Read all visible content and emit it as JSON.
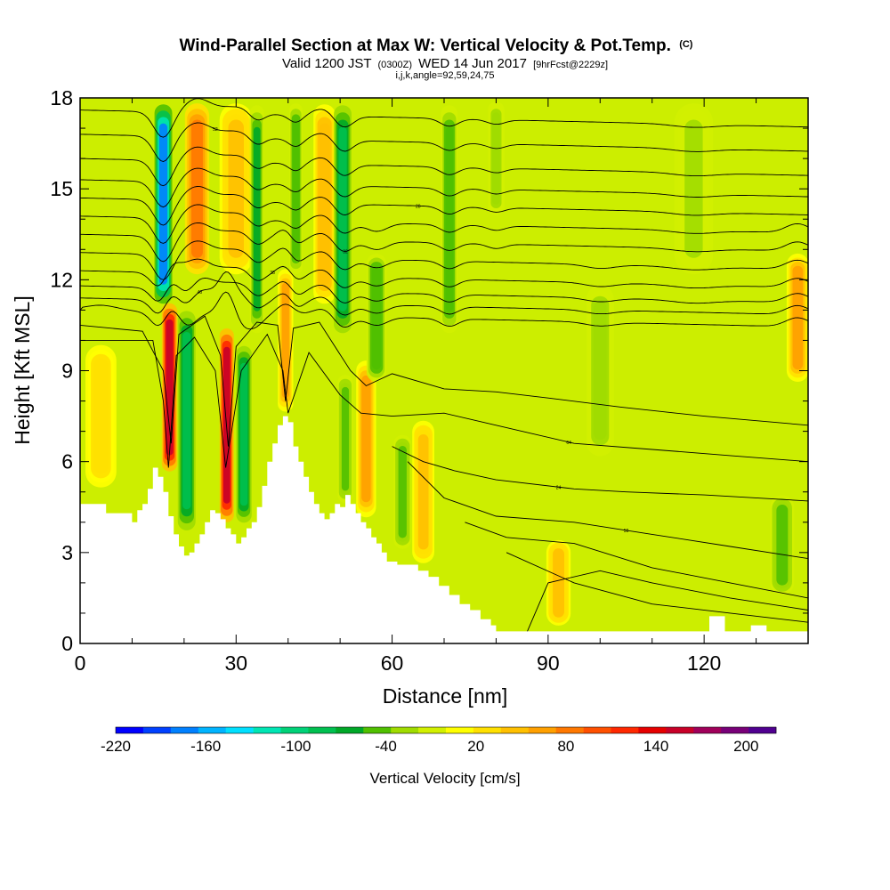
{
  "chart_data": {
    "type": "heatmap",
    "title": "Wind-Parallel Section at Max W: Vertical Velocity & Pot.Temp.",
    "title_suffix": "(C)",
    "subtitle": {
      "valid": "Valid 1200 JST",
      "utc": "(0300Z)",
      "date": "WED 14 Jun 2017",
      "fcst": "[9hrFcst@2229z]",
      "indices": "i,j,k,angle=92,59,24,75"
    },
    "xlabel": "Distance [nm]",
    "ylabel": "Height [Kft MSL]",
    "xlim": [
      0,
      140
    ],
    "ylim": [
      0,
      18
    ],
    "x_ticks": [
      0,
      30,
      60,
      90,
      120
    ],
    "y_ticks": [
      0,
      3,
      6,
      9,
      12,
      15,
      18
    ],
    "colorbar": {
      "label": "Vertical Velocity [cm/s]",
      "tick_values": [
        -220,
        -160,
        -100,
        -40,
        20,
        80,
        140,
        200
      ],
      "tick_labels": [
        "-220",
        "-160",
        "-100",
        "-40",
        "20",
        "80",
        "140",
        "200"
      ],
      "range": [
        -220,
        220
      ],
      "colors": [
        "#0000ff",
        "#0040ff",
        "#0080ff",
        "#00b4ff",
        "#00e0ff",
        "#00e6b4",
        "#00d278",
        "#00c050",
        "#00a828",
        "#50c000",
        "#a0dc00",
        "#d2f000",
        "#ffff00",
        "#ffe000",
        "#ffc000",
        "#ffa000",
        "#ff7800",
        "#ff5000",
        "#ff2800",
        "#e60000",
        "#c80028",
        "#a0005a",
        "#780078",
        "#500090"
      ]
    },
    "terrain": [
      [
        0,
        4.6
      ],
      [
        4,
        4.6
      ],
      [
        5,
        4.3
      ],
      [
        9,
        4.3
      ],
      [
        10,
        4.0
      ],
      [
        11,
        4.4
      ],
      [
        12,
        4.6
      ],
      [
        13,
        5.1
      ],
      [
        14,
        5.8
      ],
      [
        15,
        5.5
      ],
      [
        16,
        5.0
      ],
      [
        17,
        4.2
      ],
      [
        18,
        3.6
      ],
      [
        19,
        3.2
      ],
      [
        20,
        2.9
      ],
      [
        21,
        3.0
      ],
      [
        22,
        3.3
      ],
      [
        23,
        3.6
      ],
      [
        24,
        4.0
      ],
      [
        25,
        4.4
      ],
      [
        26,
        4.3
      ],
      [
        27,
        4.1
      ],
      [
        28,
        3.8
      ],
      [
        29,
        3.6
      ],
      [
        30,
        3.3
      ],
      [
        31,
        3.5
      ],
      [
        32,
        3.8
      ],
      [
        33,
        4.0
      ],
      [
        34,
        4.5
      ],
      [
        35,
        5.2
      ],
      [
        36,
        6.0
      ],
      [
        37,
        6.6
      ],
      [
        38,
        7.2
      ],
      [
        39,
        7.5
      ],
      [
        40,
        7.3
      ],
      [
        41,
        6.5
      ],
      [
        42,
        6.0
      ],
      [
        43,
        5.5
      ],
      [
        44,
        5.0
      ],
      [
        45,
        4.6
      ],
      [
        46,
        4.3
      ],
      [
        47,
        4.1
      ],
      [
        48,
        4.3
      ],
      [
        49,
        4.6
      ],
      [
        50,
        4.5
      ],
      [
        51,
        4.9
      ],
      [
        52,
        4.6
      ],
      [
        53,
        4.3
      ],
      [
        54,
        4.0
      ],
      [
        55,
        3.8
      ],
      [
        56,
        3.5
      ],
      [
        57,
        3.3
      ],
      [
        58,
        3.0
      ],
      [
        59,
        2.7
      ],
      [
        61,
        2.6
      ],
      [
        63,
        2.6
      ],
      [
        65,
        2.4
      ],
      [
        67,
        2.2
      ],
      [
        69,
        1.9
      ],
      [
        71,
        1.6
      ],
      [
        73,
        1.3
      ],
      [
        75,
        1.1
      ],
      [
        77,
        0.8
      ],
      [
        79,
        0.6
      ],
      [
        80,
        0.4
      ],
      [
        120,
        0.4
      ],
      [
        121,
        0.9
      ],
      [
        123,
        0.9
      ],
      [
        124,
        0.4
      ],
      [
        128,
        0.4
      ],
      [
        129,
        0.6
      ],
      [
        131,
        0.6
      ],
      [
        132,
        0.4
      ],
      [
        140,
        0.4
      ]
    ],
    "vertical_velocity_cells": [
      {
        "x": 16,
        "y0": 11.0,
        "y1": 18,
        "w": -170,
        "half": 1.6
      },
      {
        "x": 17.2,
        "y0": 5.5,
        "y1": 11.4,
        "w": 150,
        "half": 1.4
      },
      {
        "x": 20.5,
        "y0": 3.5,
        "y1": 11.2,
        "w": -90,
        "half": 1.6
      },
      {
        "x": 22.5,
        "y0": 12,
        "y1": 18,
        "w": 90,
        "half": 2.2
      },
      {
        "x": 28.2,
        "y0": 3.8,
        "y1": 10.6,
        "w": 150,
        "half": 1.3
      },
      {
        "x": 31.5,
        "y0": 3.8,
        "y1": 10.0,
        "w": -80,
        "half": 1.4
      },
      {
        "x": 30,
        "y0": 12,
        "y1": 18,
        "w": 45,
        "half": 3.0
      },
      {
        "x": 34,
        "y0": 10,
        "y1": 18,
        "w": -60,
        "half": 1.3
      },
      {
        "x": 39.5,
        "y0": 7.5,
        "y1": 12.5,
        "w": 70,
        "half": 1.4
      },
      {
        "x": 41.5,
        "y0": 12,
        "y1": 18,
        "w": -50,
        "half": 1.2
      },
      {
        "x": 47,
        "y0": 11,
        "y1": 18,
        "w": 50,
        "half": 2.0
      },
      {
        "x": 50.5,
        "y0": 10,
        "y1": 18,
        "w": -85,
        "half": 1.6
      },
      {
        "x": 51,
        "y0": 4.5,
        "y1": 9,
        "w": -40,
        "half": 1.4
      },
      {
        "x": 55,
        "y0": 4.0,
        "y1": 9.5,
        "w": 60,
        "half": 1.8
      },
      {
        "x": 57,
        "y0": 8.5,
        "y1": 13,
        "w": -55,
        "half": 1.8
      },
      {
        "x": 62,
        "y0": 3,
        "y1": 7,
        "w": -40,
        "half": 1.6
      },
      {
        "x": 66,
        "y0": 2.5,
        "y1": 7.5,
        "w": 45,
        "half": 2.0
      },
      {
        "x": 71,
        "y0": 10,
        "y1": 18,
        "w": -50,
        "half": 1.5
      },
      {
        "x": 80,
        "y0": 14,
        "y1": 18,
        "w": -30,
        "half": 1.5
      },
      {
        "x": 92,
        "y0": 0.5,
        "y1": 3.5,
        "w": 45,
        "half": 2.2
      },
      {
        "x": 100,
        "y0": 6,
        "y1": 12,
        "w": -25,
        "half": 2.5
      },
      {
        "x": 135,
        "y0": 1.5,
        "y1": 5,
        "w": -45,
        "half": 2.2
      },
      {
        "x": 138,
        "y0": 8.5,
        "y1": 13,
        "w": 60,
        "half": 2.0
      },
      {
        "x": 4,
        "y0": 5,
        "y1": 10,
        "w": 35,
        "half": 2.8
      },
      {
        "x": 118,
        "y0": 12,
        "y1": 18,
        "w": -20,
        "half": 3.5
      }
    ],
    "theta_contours": [
      {
        "y0": 11.0,
        "label": "",
        "wave": 1.0
      },
      {
        "y0": 11.4,
        "label": "40",
        "wave": 1.0
      },
      {
        "y0": 11.8,
        "label": "",
        "wave": 1.0
      },
      {
        "y0": 12.3,
        "label": "38",
        "wave": 1.0
      },
      {
        "y0": 12.9,
        "label": "",
        "wave": 1.0
      },
      {
        "y0": 13.5,
        "label": "32",
        "wave": 1.0
      },
      {
        "y0": 14.1,
        "label": "",
        "wave": 1.0
      },
      {
        "y0": 14.7,
        "label": "28",
        "wave": 1.0
      },
      {
        "y0": 15.3,
        "label": "",
        "wave": 1.0
      },
      {
        "y0": 16.0,
        "label": "",
        "wave": 1.0
      },
      {
        "y0": 16.8,
        "label": "52",
        "wave": 1.0
      },
      {
        "y0": 17.6,
        "label": "",
        "wave": 1.0
      }
    ],
    "lower_contours": [
      {
        "pts": [
          [
            0,
            10.5
          ],
          [
            12,
            10.3
          ],
          [
            16,
            9.0
          ],
          [
            17.5,
            6.6
          ],
          [
            19,
            10.2
          ],
          [
            24,
            10.8
          ],
          [
            27,
            9.5
          ],
          [
            28.5,
            6.5
          ],
          [
            30,
            9.8
          ],
          [
            34,
            10.6
          ],
          [
            38,
            10.5
          ],
          [
            39.5,
            8.0
          ],
          [
            41,
            10.4
          ],
          [
            46,
            10.6
          ],
          [
            52,
            9.0
          ],
          [
            55,
            8.5
          ],
          [
            60,
            8.9
          ],
          [
            70,
            8.4
          ],
          [
            80,
            8.3
          ],
          [
            90,
            8.1
          ],
          [
            104,
            7.8
          ],
          [
            120,
            7.5
          ],
          [
            140,
            7.2
          ]
        ],
        "label": "",
        "lx": 0
      },
      {
        "pts": [
          [
            0,
            10.0
          ],
          [
            14,
            10.0
          ],
          [
            16,
            8.0
          ],
          [
            17,
            5.8
          ],
          [
            18.5,
            9.5
          ],
          [
            22,
            10.1
          ],
          [
            26,
            9.0
          ],
          [
            28,
            5.8
          ],
          [
            31,
            9.0
          ],
          [
            36,
            10.2
          ],
          [
            39,
            9.0
          ],
          [
            40,
            7.6
          ],
          [
            44,
            9.6
          ],
          [
            50,
            8.2
          ],
          [
            54,
            7.6
          ],
          [
            60,
            7.5
          ],
          [
            70,
            7.6
          ],
          [
            80,
            7.2
          ],
          [
            95,
            6.6
          ],
          [
            110,
            6.4
          ],
          [
            125,
            6.2
          ],
          [
            140,
            6.0
          ]
        ],
        "label": "64",
        "lx": 94
      },
      {
        "pts": [
          [
            60,
            6.5
          ],
          [
            66,
            6.0
          ],
          [
            72,
            5.7
          ],
          [
            80,
            5.4
          ],
          [
            95,
            5.1
          ],
          [
            105,
            5.0
          ],
          [
            120,
            4.9
          ],
          [
            140,
            4.7
          ]
        ],
        "label": "24",
        "lx": 92
      },
      {
        "pts": [
          [
            63,
            6.0
          ],
          [
            70,
            4.8
          ],
          [
            80,
            4.2
          ],
          [
            95,
            4.0
          ],
          [
            110,
            3.6
          ],
          [
            125,
            3.2
          ],
          [
            140,
            2.8
          ]
        ],
        "label": "50",
        "lx": 105
      },
      {
        "pts": [
          [
            74,
            4.0
          ],
          [
            82,
            3.5
          ],
          [
            95,
            3.3
          ],
          [
            110,
            2.5
          ],
          [
            125,
            2.0
          ],
          [
            140,
            1.5
          ]
        ],
        "label": "",
        "lx": 0
      },
      {
        "pts": [
          [
            82,
            3.0
          ],
          [
            95,
            2.0
          ],
          [
            110,
            1.3
          ],
          [
            125,
            1.0
          ],
          [
            140,
            0.7
          ]
        ],
        "label": "",
        "lx": 0
      },
      {
        "pts": [
          [
            86,
            0.4
          ],
          [
            90,
            2.0
          ],
          [
            100,
            2.4
          ],
          [
            110,
            2.0
          ],
          [
            125,
            1.5
          ],
          [
            140,
            1.1
          ]
        ],
        "label": "",
        "lx": 0
      }
    ]
  }
}
